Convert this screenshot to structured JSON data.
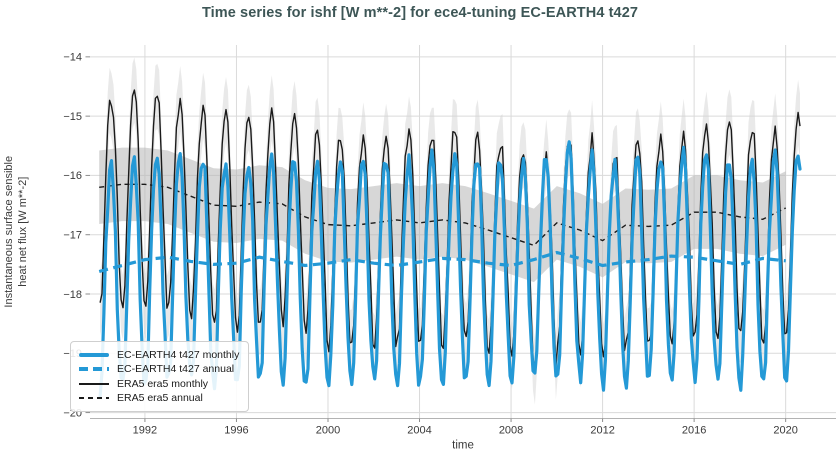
{
  "colors": {
    "blue": "#2499d6",
    "black": "#1a1a1a",
    "title": "#3d5656",
    "grid": "#dadada",
    "spine": "#b3b3b3",
    "tick": "#8c8c8c",
    "text": "#3a3a3a",
    "band_monthly": "#d4d4d4",
    "band_annual": "#b6b6b6"
  },
  "legend": {
    "items": [
      {
        "label": "EC-EARTH4 t427 monthly",
        "style": "blue-solid"
      },
      {
        "label": "EC-EARTH4 t427 annual",
        "style": "blue-dashed"
      },
      {
        "label": "ERA5 era5 monthly",
        "style": "black-solid"
      },
      {
        "label": "ERA5 era5 annual",
        "style": "black-dashed"
      }
    ]
  },
  "chart_data": {
    "type": "line",
    "title": "Time series for ishf [W m**-2] for ece4-tuning EC-EARTH4 t427",
    "xlabel": "time",
    "ylabel_lines": [
      "Instantaneous surface sensible",
      "heat net flux [W m**-2]"
    ],
    "x_ticks": [
      1992,
      1996,
      2000,
      2004,
      2008,
      2012,
      2016,
      2020
    ],
    "y_ticks": [
      -14,
      -15,
      -16,
      -17,
      -18,
      -19,
      -20
    ],
    "xlim": [
      1989.6,
      2022.2
    ],
    "ylim": [
      -20.1,
      -13.8
    ],
    "grid": true,
    "legend_position": "lower left",
    "years": [
      1990,
      1991,
      1992,
      1993,
      1994,
      1995,
      1996,
      1997,
      1998,
      1999,
      2000,
      2001,
      2002,
      2003,
      2004,
      2005,
      2006,
      2007,
      2008,
      2009,
      2010,
      2011,
      2012,
      2013,
      2014,
      2015,
      2016,
      2017,
      2018,
      2019,
      2020
    ],
    "last_year_months": 8,
    "jitter_amp": 0.28,
    "series": [
      {
        "name": "EC-EARTH4 t427 monthly",
        "kind": "monthly",
        "color": "blue",
        "line": "solid",
        "width": 3.2,
        "construction": "annual_mean_of_year + climatology_of_month + small_jitter",
        "climatology": [
          -2.0,
          -1.65,
          -0.6,
          0.45,
          1.15,
          1.6,
          1.75,
          1.45,
          0.6,
          -0.55,
          -1.35,
          -1.9
        ]
      },
      {
        "name": "EC-EARTH4 t427 annual",
        "kind": "annual",
        "color": "blue",
        "line": "dashed",
        "width": 3.2,
        "values": [
          -17.62,
          -17.52,
          -17.42,
          -17.38,
          -17.45,
          -17.5,
          -17.48,
          -17.38,
          -17.45,
          -17.52,
          -17.48,
          -17.42,
          -17.48,
          -17.52,
          -17.46,
          -17.4,
          -17.42,
          -17.48,
          -17.52,
          -17.42,
          -17.3,
          -17.4,
          -17.52,
          -17.46,
          -17.42,
          -17.36,
          -17.38,
          -17.44,
          -17.5,
          -17.4,
          -17.44
        ]
      },
      {
        "name": "ERA5 era5 monthly",
        "kind": "monthly",
        "color": "black",
        "line": "solid",
        "width": 1.4,
        "construction": "annual_mean_of_year + climatology_of_month + small_jitter",
        "climatology": [
          -2.05,
          -1.7,
          -0.75,
          0.25,
          0.95,
          1.35,
          1.5,
          1.3,
          0.65,
          -0.3,
          -1.2,
          -1.95
        ]
      },
      {
        "name": "ERA5 era5 annual",
        "kind": "annual",
        "color": "black",
        "line": "dashed",
        "width": 1.4,
        "values": [
          -16.2,
          -16.15,
          -16.15,
          -16.2,
          -16.35,
          -16.5,
          -16.52,
          -16.45,
          -16.48,
          -16.7,
          -16.83,
          -16.85,
          -16.8,
          -16.75,
          -16.8,
          -16.75,
          -16.8,
          -16.92,
          -17.05,
          -17.18,
          -16.8,
          -16.92,
          -17.1,
          -16.84,
          -16.86,
          -16.84,
          -16.62,
          -16.62,
          -16.7,
          -16.74,
          -16.55
        ]
      }
    ],
    "bands": [
      {
        "around": "ERA5 era5 monthly",
        "halfwidth": 0.55,
        "color_key": "band_monthly",
        "opacity": 0.5
      },
      {
        "around": "ERA5 era5 annual",
        "halfwidth": 0.62,
        "color_key": "band_annual",
        "opacity": 0.55
      }
    ]
  }
}
